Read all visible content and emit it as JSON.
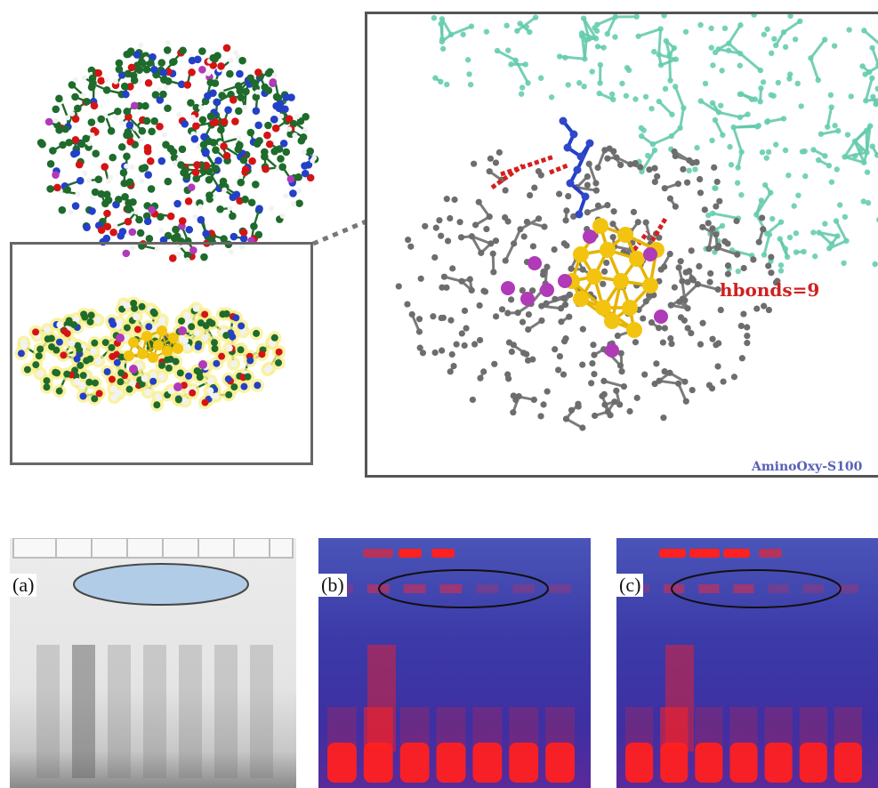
{
  "top": {
    "hbonds_label": "hbonds=9",
    "watermark": "AminoOxy-S100"
  },
  "gels": [
    {
      "label": "(a)"
    },
    {
      "label": "(b)"
    },
    {
      "label": "(c)"
    }
  ],
  "colors": {
    "carbon": "#1e6b2c",
    "oxygen": "#d41414",
    "nitrogen": "#2340c8",
    "hydrogen": "#f2f2f2",
    "sulfur": "#b03ab8",
    "gold": "#f2c40f",
    "protein_ribbon": "#5fc7a8",
    "ligand_grey": "#7b7b7b",
    "hbond": "#d61e1e",
    "gel_blue": "#3d2fa6",
    "gel_red": "#ff2020"
  }
}
